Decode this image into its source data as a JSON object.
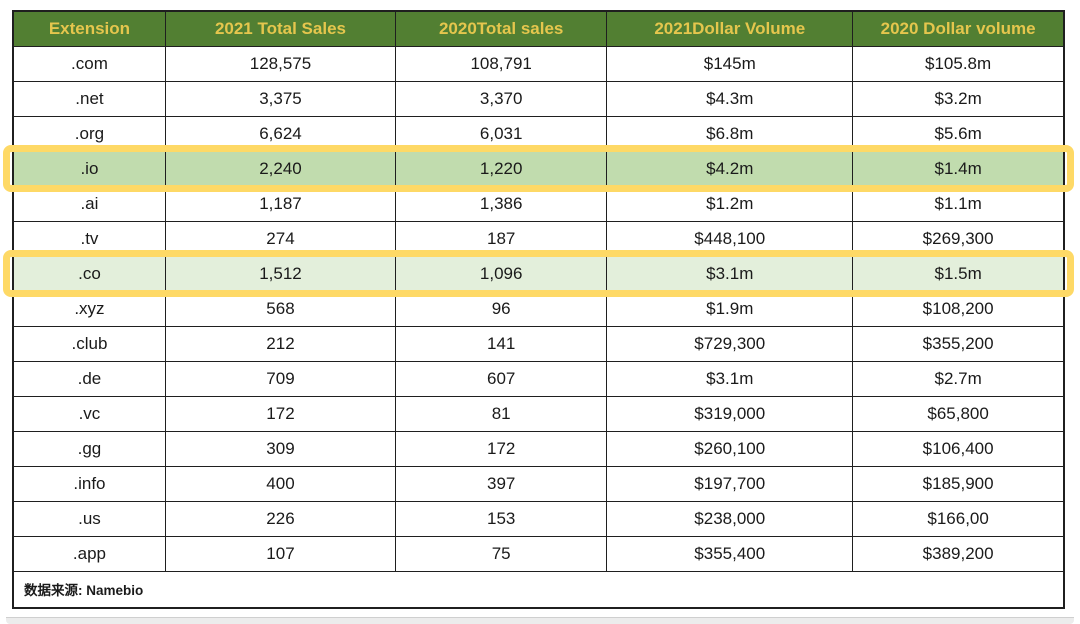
{
  "chart_data": {
    "type": "table",
    "columns": [
      "Extension",
      "2021 Total Sales",
      "2020Total sales",
      "2021Dollar Volume",
      "2020 Dollar volume"
    ],
    "rows": [
      {
        "cells": [
          ".com",
          "128,575",
          "108,791",
          "$145m",
          "$105.8m"
        ],
        "highlight": ""
      },
      {
        "cells": [
          ".net",
          "3,375",
          "3,370",
          "$4.3m",
          "$3.2m"
        ],
        "highlight": ""
      },
      {
        "cells": [
          ".org",
          "6,624",
          "6,031",
          "$6.8m",
          "$5.6m"
        ],
        "highlight": ""
      },
      {
        "cells": [
          ".io",
          "2,240",
          "1,220",
          "$4.2m",
          "$1.4m"
        ],
        "highlight": "strong"
      },
      {
        "cells": [
          ".ai",
          "1,187",
          "1,386",
          "$1.2m",
          "$1.1m"
        ],
        "highlight": ""
      },
      {
        "cells": [
          ".tv",
          "274",
          "187",
          "$448,100",
          "$269,300"
        ],
        "highlight": ""
      },
      {
        "cells": [
          ".co",
          "1,512",
          "1,096",
          "$3.1m",
          "$1.5m"
        ],
        "highlight": "light"
      },
      {
        "cells": [
          ".xyz",
          "568",
          "96",
          "$1.9m",
          "$108,200"
        ],
        "highlight": ""
      },
      {
        "cells": [
          ".club",
          "212",
          "141",
          "$729,300",
          "$355,200"
        ],
        "highlight": ""
      },
      {
        "cells": [
          ".de",
          "709",
          "607",
          "$3.1m",
          "$2.7m"
        ],
        "highlight": ""
      },
      {
        "cells": [
          ".vc",
          "172",
          "81",
          "$319,000",
          "$65,800"
        ],
        "highlight": ""
      },
      {
        "cells": [
          ".gg",
          "309",
          "172",
          "$260,100",
          "$106,400"
        ],
        "highlight": ""
      },
      {
        "cells": [
          ".info",
          "400",
          "397",
          "$197,700",
          "$185,900"
        ],
        "highlight": ""
      },
      {
        "cells": [
          ".us",
          "226",
          "153",
          "$238,000",
          "$166,00"
        ],
        "highlight": ""
      },
      {
        "cells": [
          ".app",
          "107",
          "75",
          "$355,400",
          "$389,200"
        ],
        "highlight": ""
      }
    ],
    "source_note": "数据来源: Namebio"
  },
  "colors": {
    "header_bg": "#527f32",
    "header_text": "#e5c64d",
    "border": "#1f1f1f",
    "highlight_outline": "#fed966",
    "highlight_fill_strong": "#c1dcae",
    "highlight_fill_light": "#e3efdb"
  }
}
